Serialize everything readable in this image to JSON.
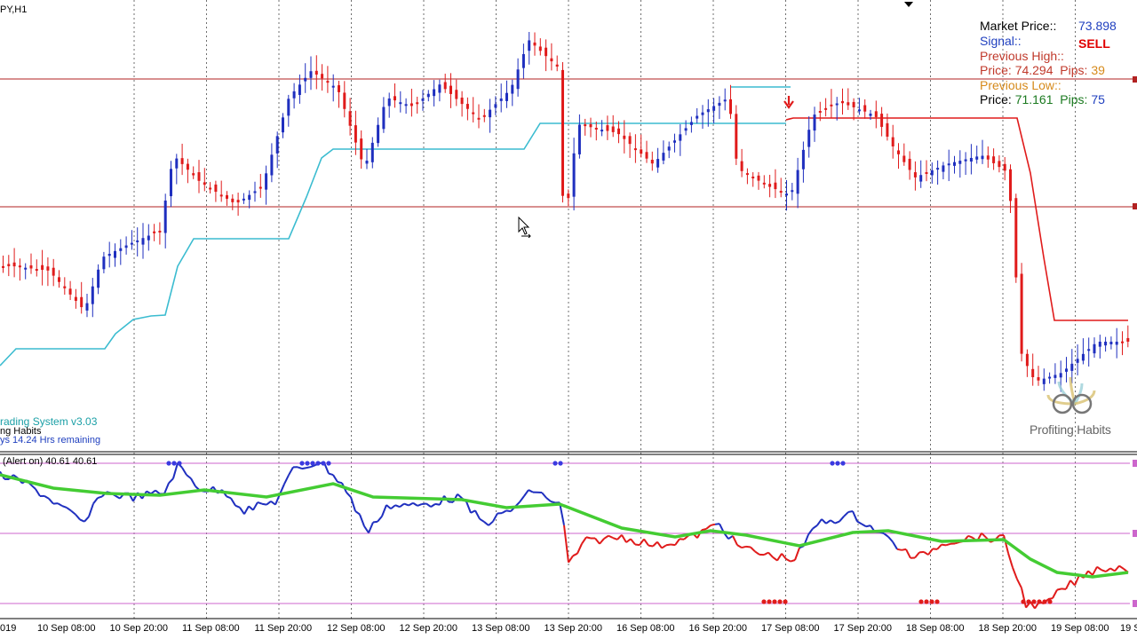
{
  "chart_window": {
    "symbol_tf": "PY,H1",
    "system_title": "rading System v3.03",
    "system_sub": "ng Habits",
    "system_remaining": "ys 14.24 Hrs remaining",
    "oscillator_label": "(Alert on) 40.61 40.61"
  },
  "info_panel": {
    "market_price_label": "Market Price::",
    "market_price_value": "73.898",
    "signal_label": "Signal::",
    "signal_value": "SELL",
    "prev_high_label": "Previous High::",
    "prev_high_price_label": "Price:",
    "prev_high_price": "74.294",
    "prev_high_pips_label": "Pips:",
    "prev_high_pips": "39",
    "prev_low_label": "Previous Low::",
    "prev_low_price_label": "Price:",
    "prev_low_price": "71.161",
    "prev_low_pips_label": "Pips:",
    "prev_low_pips": "75"
  },
  "logo": {
    "text": "Profiting Habits"
  },
  "colors": {
    "bull": "#1f2fbf",
    "bear": "#e01b1b",
    "support": "#3bbcd0",
    "resistance": "#e01b1b",
    "hline": "#b22222",
    "osc_blue": "#1f2fbf",
    "osc_red": "#e01b1b",
    "osc_green": "#44cc33",
    "osc_level": "#cc66cc"
  },
  "chart_data": {
    "type": "candlestick",
    "x_labels": [
      "019",
      "10 Sep 08:00",
      "10 Sep 20:00",
      "11 Sep 08:00",
      "11 Sep 20:00",
      "12 Sep 08:00",
      "12 Sep 20:00",
      "13 Sep 08:00",
      "13 Sep 20:00",
      "16 Sep 08:00",
      "16 Sep 20:00",
      "17 Sep 08:00",
      "17 Sep 20:00",
      "18 Sep 08:00",
      "18 Sep 20:00",
      "19 Sep 08:00",
      "19 S"
    ],
    "close_path": [
      74.2,
      73.4,
      73.6,
      74.1,
      74.5,
      75.0,
      74.6,
      75.3,
      75.6,
      75.9,
      74.6,
      74.9,
      74.9,
      75.2,
      75.1,
      74.7,
      75.1,
      75.0,
      74.5,
      73.4,
      73.8
    ],
    "oscillator_levels": [
      70,
      50,
      30
    ],
    "signal": "SELL"
  }
}
